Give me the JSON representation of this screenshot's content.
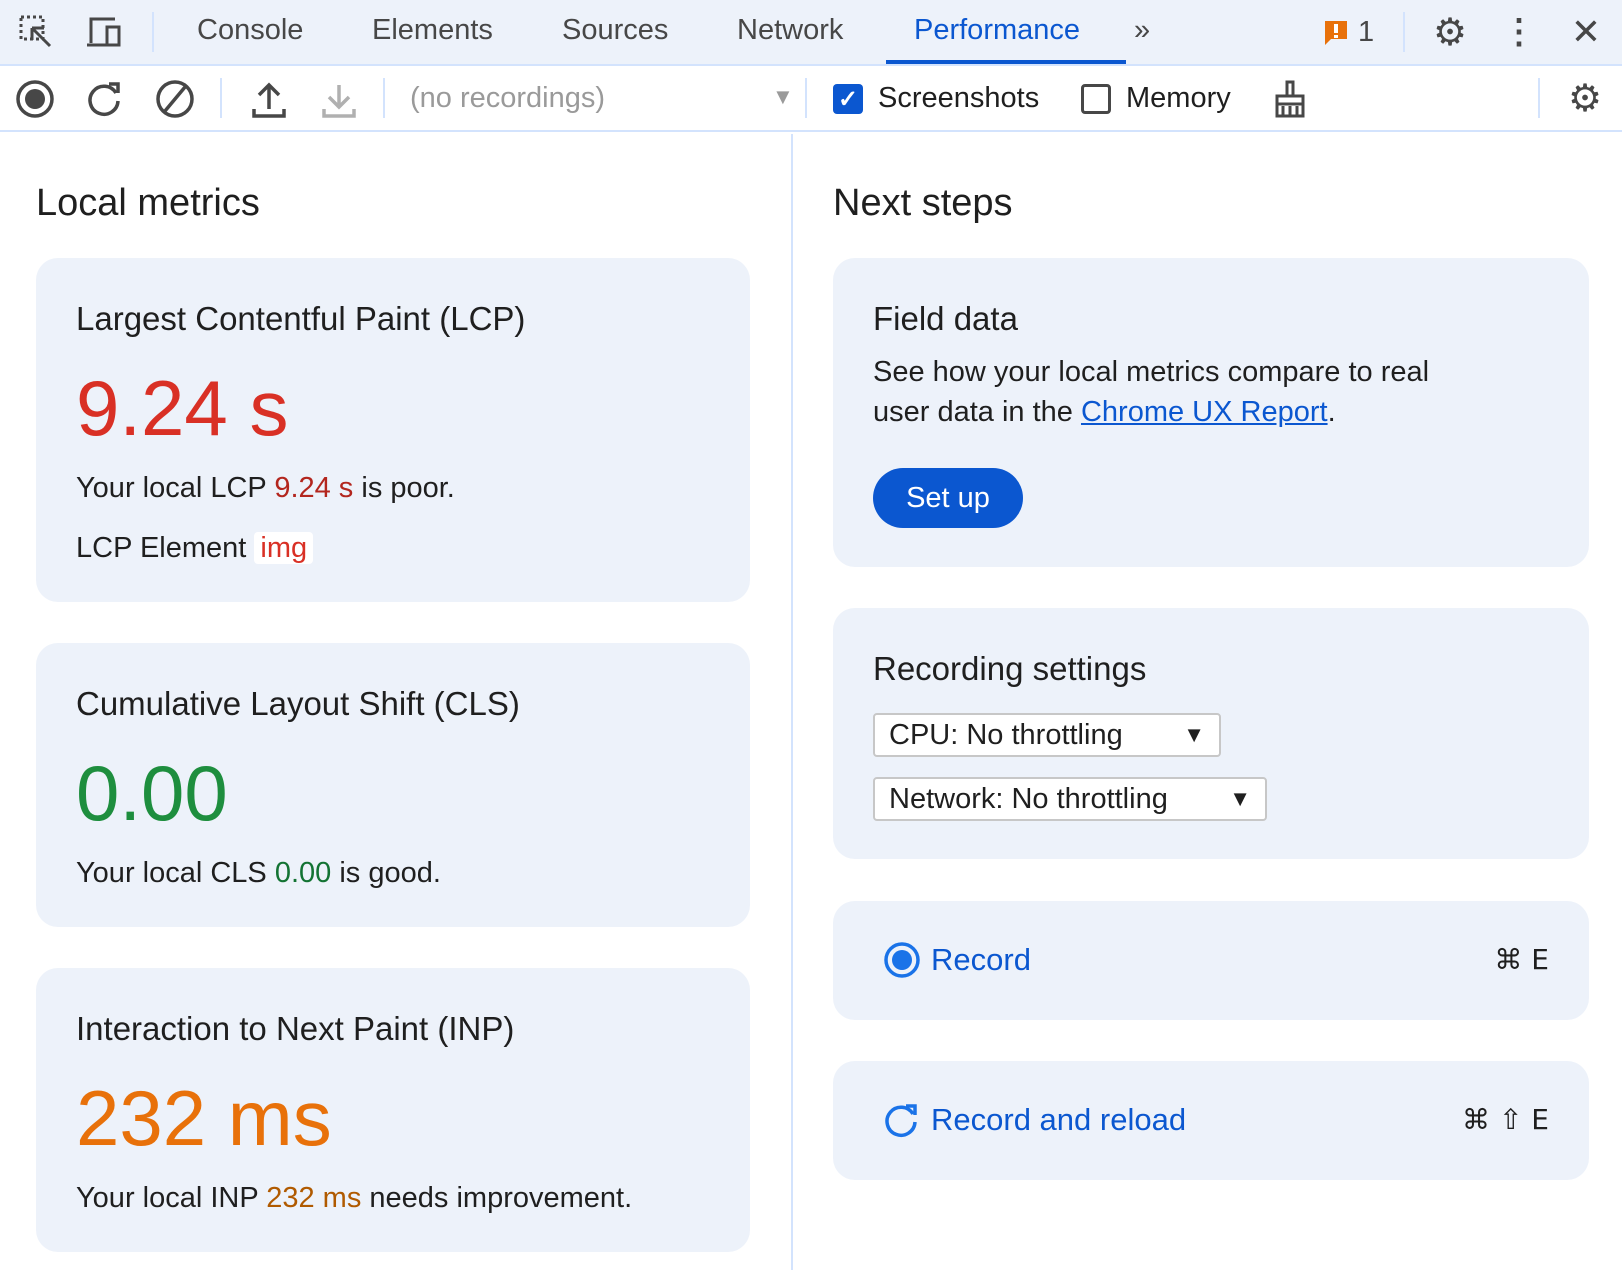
{
  "tabs": [
    "Console",
    "Elements",
    "Sources",
    "Network",
    "Performance"
  ],
  "active_tab": "Performance",
  "issues_count": "1",
  "toolbar": {
    "recordings_placeholder": "(no recordings)",
    "screenshots_label": "Screenshots",
    "screenshots_checked": true,
    "memory_label": "Memory",
    "memory_checked": false
  },
  "local_metrics": {
    "title": "Local metrics",
    "lcp": {
      "title": "Largest Contentful Paint (LCP)",
      "value": "9.24 s",
      "desc_pre": "Your local LCP ",
      "desc_val": "9.24 s",
      "desc_post": " is poor.",
      "element_label": "LCP Element",
      "element_value": "img",
      "color": "#d93025"
    },
    "cls": {
      "title": "Cumulative Layout Shift (CLS)",
      "value": "0.00",
      "desc_pre": "Your local CLS ",
      "desc_val": "0.00",
      "desc_post": " is good.",
      "color": "#1e8e3e"
    },
    "inp": {
      "title": "Interaction to Next Paint (INP)",
      "value": "232 ms",
      "desc_pre": "Your local INP ",
      "desc_val": "232 ms",
      "desc_post": " needs improvement.",
      "color": "#e8710a"
    }
  },
  "next_steps": {
    "title": "Next steps",
    "field_data": {
      "title": "Field data",
      "text1": "See how your local metrics compare to real",
      "text2_pre": "user data in the ",
      "link": "Chrome UX Report",
      "text2_post": ".",
      "button": "Set up"
    },
    "recording_settings": {
      "title": "Recording settings",
      "cpu": "CPU: No throttling",
      "network": "Network: No throttling"
    },
    "record": {
      "label": "Record",
      "shortcut": "⌘ E"
    },
    "record_reload": {
      "label": "Record and reload",
      "shortcut": "⌘ ⇧ E"
    }
  }
}
